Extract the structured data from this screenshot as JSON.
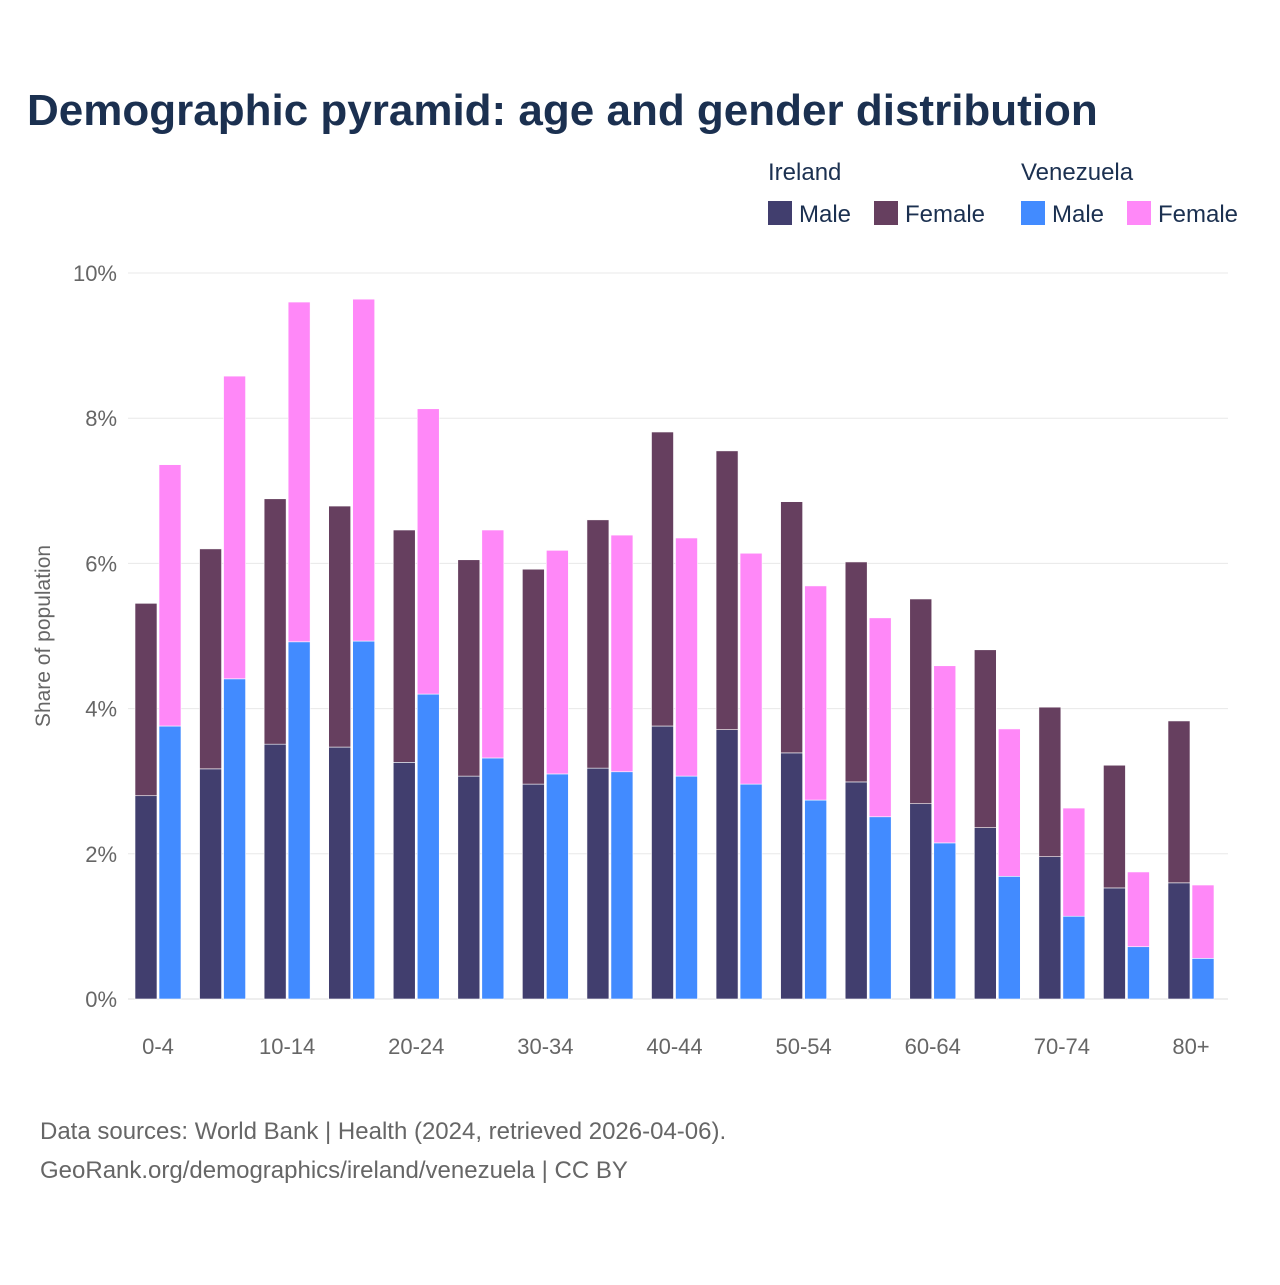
{
  "chart_data": {
    "type": "bar",
    "title": "Demographic pyramid: age and gender distribution",
    "ylabel": "Share of population",
    "xlabel": "",
    "ylim": [
      0,
      10
    ],
    "yticks": [
      "0%",
      "2%",
      "4%",
      "6%",
      "8%",
      "10%"
    ],
    "ytick_values": [
      0,
      2,
      4,
      6,
      8,
      10
    ],
    "grid": true,
    "legend_placement": "top-right",
    "categories": [
      "0-4",
      "5-9",
      "10-14",
      "15-19",
      "20-24",
      "25-29",
      "30-34",
      "35-39",
      "40-44",
      "45-49",
      "50-54",
      "55-59",
      "60-64",
      "65-69",
      "70-74",
      "75-79",
      "80+"
    ],
    "xticks": [
      "0-4",
      "10-14",
      "20-24",
      "30-34",
      "40-44",
      "50-54",
      "60-64",
      "70-74",
      "80+"
    ],
    "xtick_indices": [
      0,
      2,
      4,
      6,
      8,
      10,
      12,
      14,
      16
    ],
    "groups": [
      {
        "name": "Ireland",
        "series": [
          {
            "name": "Male",
            "color": "#413e6e",
            "values": [
              2.8,
              3.17,
              3.51,
              3.47,
              3.26,
              3.07,
              2.96,
              3.18,
              3.76,
              3.71,
              3.39,
              2.99,
              2.69,
              2.36,
              1.96,
              1.53,
              1.6
            ]
          },
          {
            "name": "Female",
            "color": "#663f5f",
            "values": [
              2.65,
              3.03,
              3.38,
              3.32,
              3.2,
              2.98,
              2.96,
              3.42,
              4.05,
              3.84,
              3.46,
              3.03,
              2.82,
              2.45,
              2.06,
              1.69,
              2.23
            ]
          }
        ]
      },
      {
        "name": "Venezuela",
        "series": [
          {
            "name": "Male",
            "color": "#428bff",
            "values": [
              3.76,
              4.41,
              4.92,
              4.93,
              4.2,
              3.32,
              3.1,
              3.13,
              3.07,
              2.96,
              2.74,
              2.51,
              2.15,
              1.69,
              1.14,
              0.72,
              0.56
            ]
          },
          {
            "name": "Female",
            "color": "#ff88f8",
            "values": [
              3.6,
              4.17,
              4.68,
              4.71,
              3.93,
              3.14,
              3.08,
              3.26,
              3.28,
              3.18,
              2.95,
              2.74,
              2.44,
              2.03,
              1.49,
              1.03,
              1.01
            ]
          }
        ]
      }
    ]
  },
  "footer": {
    "source": "Data sources: World Bank | Health (2024, retrieved 2026-04-06).",
    "link": "GeoRank.org/demographics/ireland/venezuela | CC BY"
  }
}
